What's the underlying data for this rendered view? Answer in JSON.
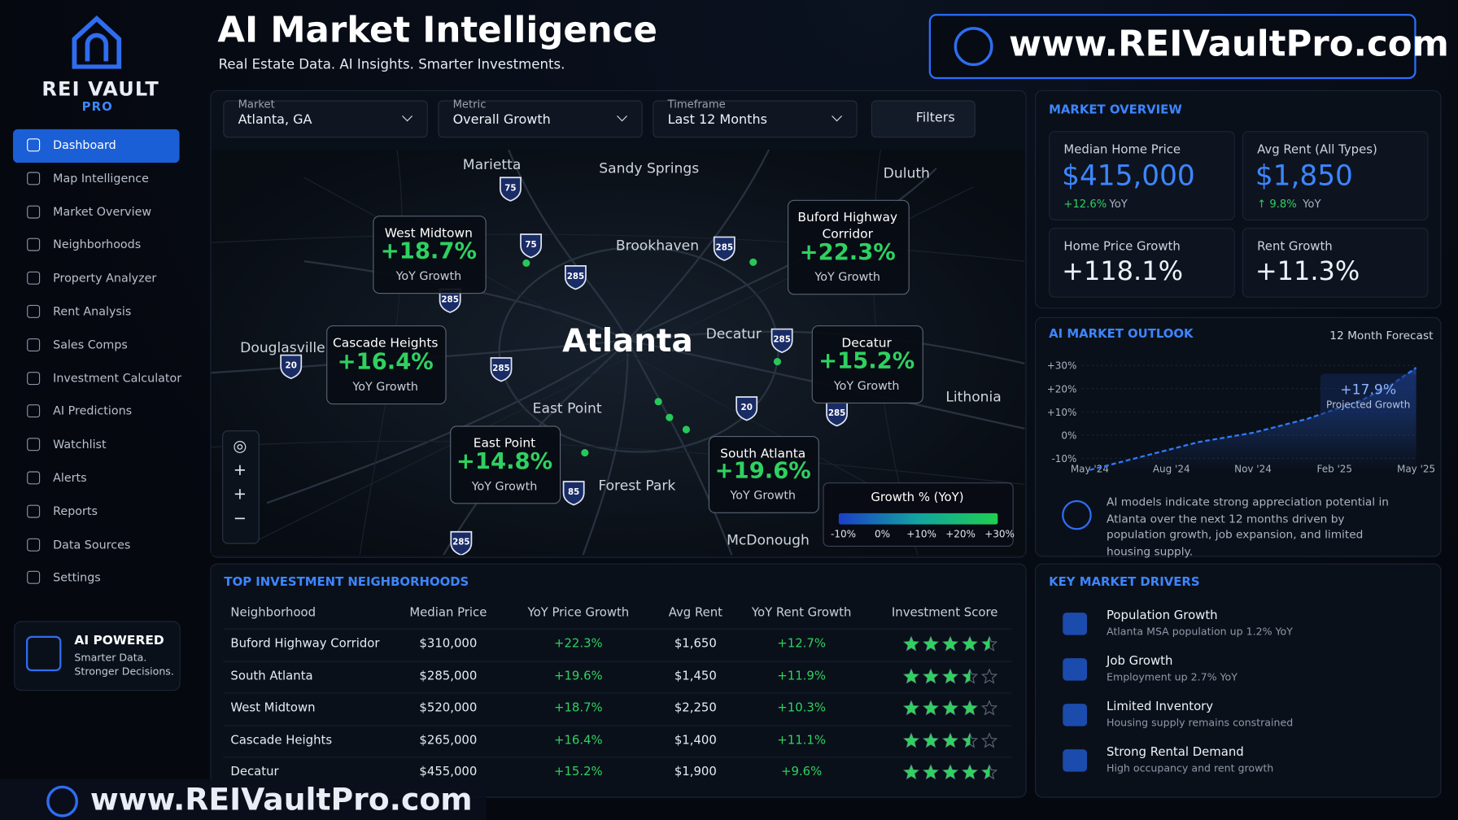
{
  "brand": {
    "name": "REI VAULT",
    "tag": "PRO"
  },
  "nav": [
    "Dashboard",
    "Map Intelligence",
    "Market Overview",
    "Neighborhoods",
    "Property Analyzer",
    "Rent Analysis",
    "Sales Comps",
    "Investment Calculator",
    "AI Predictions",
    "Watchlist",
    "Alerts",
    "Reports",
    "Data Sources",
    "Settings"
  ],
  "ai_badge": {
    "title": "AI POWERED",
    "lines": [
      "Smarter Data.",
      "Stronger Decisions."
    ]
  },
  "header": {
    "title": "AI Market Intelligence",
    "subtitle": "Real Estate Data. AI Insights. Smarter Investments.",
    "url": "www.REIVaultPro.com"
  },
  "filters": [
    {
      "label": "Market",
      "value": "Atlanta, GA"
    },
    {
      "label": "Metric",
      "value": "Overall Growth"
    },
    {
      "label": "Timeframe",
      "value": "Last 12 Months"
    }
  ],
  "filters_button": "Filters",
  "map": {
    "center": "Atlanta",
    "places": [
      "Marietta",
      "Sandy Springs",
      "Duluth",
      "Brookhaven",
      "Douglasville",
      "Decatur",
      "East Point",
      "Lithonia",
      "Forest Park",
      "McDonough"
    ],
    "shields": [
      "75",
      "75",
      "285",
      "285",
      "285",
      "20",
      "285",
      "285",
      "20",
      "285",
      "85",
      "285"
    ],
    "callouts": [
      {
        "name": "West Midtown",
        "value": "+18.7%",
        "caption": "YoY Growth"
      },
      {
        "name": "Buford Highway Corridor",
        "value": "+22.3%",
        "caption": "YoY Growth"
      },
      {
        "name": "Cascade Heights",
        "value": "+16.4%",
        "caption": "YoY Growth"
      },
      {
        "name": "Decatur",
        "value": "+15.2%",
        "caption": "YoY Growth"
      },
      {
        "name": "East Point",
        "value": "+14.8%",
        "caption": "YoY Growth"
      },
      {
        "name": "South Atlanta",
        "value": "+19.6%",
        "caption": "YoY Growth"
      }
    ],
    "legend": {
      "title": "Growth % (YoY)",
      "ticks": [
        "-10%",
        "0%",
        "+10%",
        "+20%",
        "+30%"
      ]
    }
  },
  "overview": {
    "title": "MARKET OVERVIEW",
    "cards": [
      {
        "label": "Median Home Price",
        "value": "$415,000",
        "change": "+12.6%",
        "unit": "YoY"
      },
      {
        "label": "Avg Rent (All Types)",
        "value": "$1,850",
        "change": "↑ 9.8%",
        "unit": "YoY"
      },
      {
        "label": "Home Price Growth",
        "value": "+118.1%"
      },
      {
        "label": "Rent Growth",
        "value": "+11.3%"
      }
    ]
  },
  "outlook": {
    "title": "AI MARKET OUTLOOK",
    "subtitle": "12 Month Forecast",
    "type": "line",
    "categories": [
      "May '24",
      null,
      null,
      "Aug '24",
      null,
      null,
      "Nov '24",
      null,
      null,
      "Feb '25",
      null,
      null,
      "May '25"
    ],
    "values": [
      -15,
      -12,
      -9,
      -6,
      -3,
      -1,
      1,
      4,
      7,
      11,
      15,
      21,
      29
    ],
    "ylim": [
      -15,
      32
    ],
    "yticks": [
      {
        "value": 30,
        "label": "+30%"
      },
      {
        "value": 20,
        "label": "+20%"
      },
      {
        "value": 10,
        "label": "+10%"
      },
      {
        "value": 0,
        "label": "0%"
      },
      {
        "value": -10,
        "label": "-10%"
      }
    ],
    "annotation": {
      "value": "+17.9%",
      "label": "Projected Growth"
    },
    "note": "AI models indicate strong appreciation potential in Atlanta over the next 12 months driven by population growth, job expansion, and limited housing supply."
  },
  "table": {
    "title": "TOP INVESTMENT NEIGHBORHOODS",
    "columns": [
      "Neighborhood",
      "Median Price",
      "YoY Price Growth",
      "Avg Rent",
      "YoY Rent Growth",
      "Investment Score"
    ],
    "rows": [
      [
        "Buford Highway Corridor",
        "$310,000",
        "+22.3%",
        "$1,650",
        "+12.7%"
      ],
      [
        "South Atlanta",
        "$285,000",
        "+19.6%",
        "$1,450",
        "+11.9%"
      ],
      [
        "West Midtown",
        "$520,000",
        "+18.7%",
        "$2,250",
        "+10.3%"
      ],
      [
        "Cascade Heights",
        "$265,000",
        "+16.4%",
        "$1,400",
        "+11.1%"
      ],
      [
        "Decatur",
        "$455,000",
        "+15.2%",
        "$1,900",
        "+9.6%"
      ]
    ],
    "scores": [
      4.5,
      3.5,
      4,
      3.5,
      4.5
    ],
    "score_max": 5
  },
  "drivers": {
    "title": "KEY MARKET DRIVERS",
    "items": [
      {
        "title": "Population Growth",
        "detail": "Atlanta MSA population up 1.2% YoY"
      },
      {
        "title": "Job Growth",
        "detail": "Employment up 2.7% YoY"
      },
      {
        "title": "Limited Inventory",
        "detail": "Housing supply remains constrained"
      },
      {
        "title": "Strong Rental Demand",
        "detail": "High occupancy and rent growth"
      }
    ]
  },
  "footer_url": "www.REIVaultPro.com"
}
